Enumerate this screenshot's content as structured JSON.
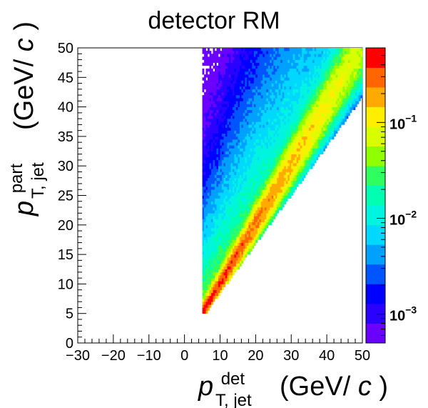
{
  "chart_data": {
    "type": "heatmap",
    "title": "detector RM",
    "xlabel": {
      "base": "p",
      "superscript": "det",
      "subscript": "T, jet",
      "unit_prefix": "(GeV/",
      "unit_italic": "c",
      "unit_suffix": ")"
    },
    "ylabel": {
      "base": "p",
      "superscript": "part",
      "subscript": "T, jet",
      "unit_prefix": "(GeV/",
      "unit_italic": "c",
      "unit_suffix": ")"
    },
    "xlim": [
      -30,
      50
    ],
    "ylim": [
      0,
      50
    ],
    "x_ticks": [
      -30,
      -20,
      -10,
      0,
      10,
      20,
      30,
      40,
      50
    ],
    "y_ticks": [
      0,
      5,
      10,
      15,
      20,
      25,
      30,
      35,
      40,
      45,
      50
    ],
    "z_scale": "log",
    "zlim": [
      0.0005,
      0.6
    ],
    "z_ticks": [
      {
        "value": 0.001,
        "base": "10",
        "exp": "−3"
      },
      {
        "value": 0.01,
        "base": "10",
        "exp": "−2"
      },
      {
        "value": 0.1,
        "base": "10",
        "exp": "−1"
      }
    ],
    "palette": [
      "#6a00ff",
      "#2a00ff",
      "#0000ff",
      "#0055ff",
      "#00a0ff",
      "#00d8ff",
      "#00f5e0",
      "#00ffb0",
      "#30ff60",
      "#90ff00",
      "#d8ff00",
      "#ffee00",
      "#ffaa00",
      "#ff6600",
      "#ff0000"
    ],
    "distribution": {
      "description_free": true,
      "x_min": 5,
      "y_min": 5,
      "ridge_slope": 1.0,
      "ridge_value_low_pt": 0.5,
      "ridge_value_high_pt": 0.06,
      "lower_edge_slope": 0.83,
      "upper_tail_width": 45,
      "tail_level": 0.0012
    }
  }
}
